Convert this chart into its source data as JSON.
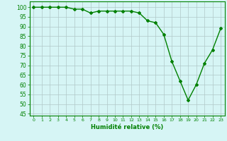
{
  "x": [
    0,
    1,
    2,
    3,
    4,
    5,
    6,
    7,
    8,
    9,
    10,
    11,
    12,
    13,
    14,
    15,
    16,
    17,
    18,
    19,
    20,
    21,
    22,
    23
  ],
  "y": [
    100,
    100,
    100,
    100,
    100,
    99,
    99,
    97,
    98,
    98,
    98,
    98,
    98,
    97,
    93,
    92,
    86,
    72,
    62,
    52,
    60,
    71,
    78,
    89
  ],
  "line_color": "#008000",
  "marker": "D",
  "markersize": 2,
  "linewidth": 1.0,
  "bg_color": "#d6f5f5",
  "grid_color": "#b0c8c8",
  "xlabel": "Humidité relative (%)",
  "xlabel_color": "#008000",
  "xlabel_fontsize": 6,
  "xtick_labels": [
    "0",
    "1",
    "2",
    "3",
    "4",
    "5",
    "6",
    "7",
    "8",
    "9",
    "10",
    "11",
    "12",
    "13",
    "14",
    "15",
    "16",
    "17",
    "18",
    "19",
    "20",
    "21",
    "22",
    "23"
  ],
  "ytick_values": [
    45,
    50,
    55,
    60,
    65,
    70,
    75,
    80,
    85,
    90,
    95,
    100
  ],
  "ytick_fontsize": 5.5,
  "xtick_fontsize": 4.5,
  "ylim": [
    44,
    103
  ],
  "xlim": [
    -0.5,
    23.5
  ]
}
